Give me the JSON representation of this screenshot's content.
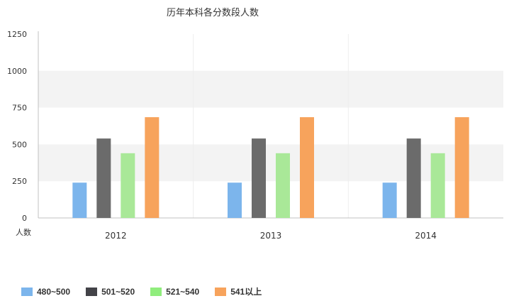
{
  "chart_data": {
    "type": "bar",
    "title": "历年本科各分数段人数",
    "ylabel": "人数",
    "xlabel": "",
    "categories": [
      "2012",
      "2013",
      "2014"
    ],
    "ylim": [
      0,
      1250
    ],
    "yticks": [
      0,
      250,
      500,
      750,
      1000,
      1250
    ],
    "grid": "alternating horizontal bands",
    "legend_position": "bottom-left",
    "series": [
      {
        "name": "480~500",
        "values": [
          240,
          240,
          240
        ],
        "color": "#7cb5ec",
        "legend_color": "#7cb5ec"
      },
      {
        "name": "501~520",
        "values": [
          540,
          540,
          540
        ],
        "color": "#6b6b6b",
        "legend_color": "#434348"
      },
      {
        "name": "521~540",
        "values": [
          440,
          440,
          440
        ],
        "color": "#a9e898",
        "legend_color": "#90ed7d"
      },
      {
        "name": "541以上",
        "values": [
          685,
          685,
          685
        ],
        "color": "#f7a35c",
        "legend_color": "#f7a35c"
      }
    ]
  }
}
